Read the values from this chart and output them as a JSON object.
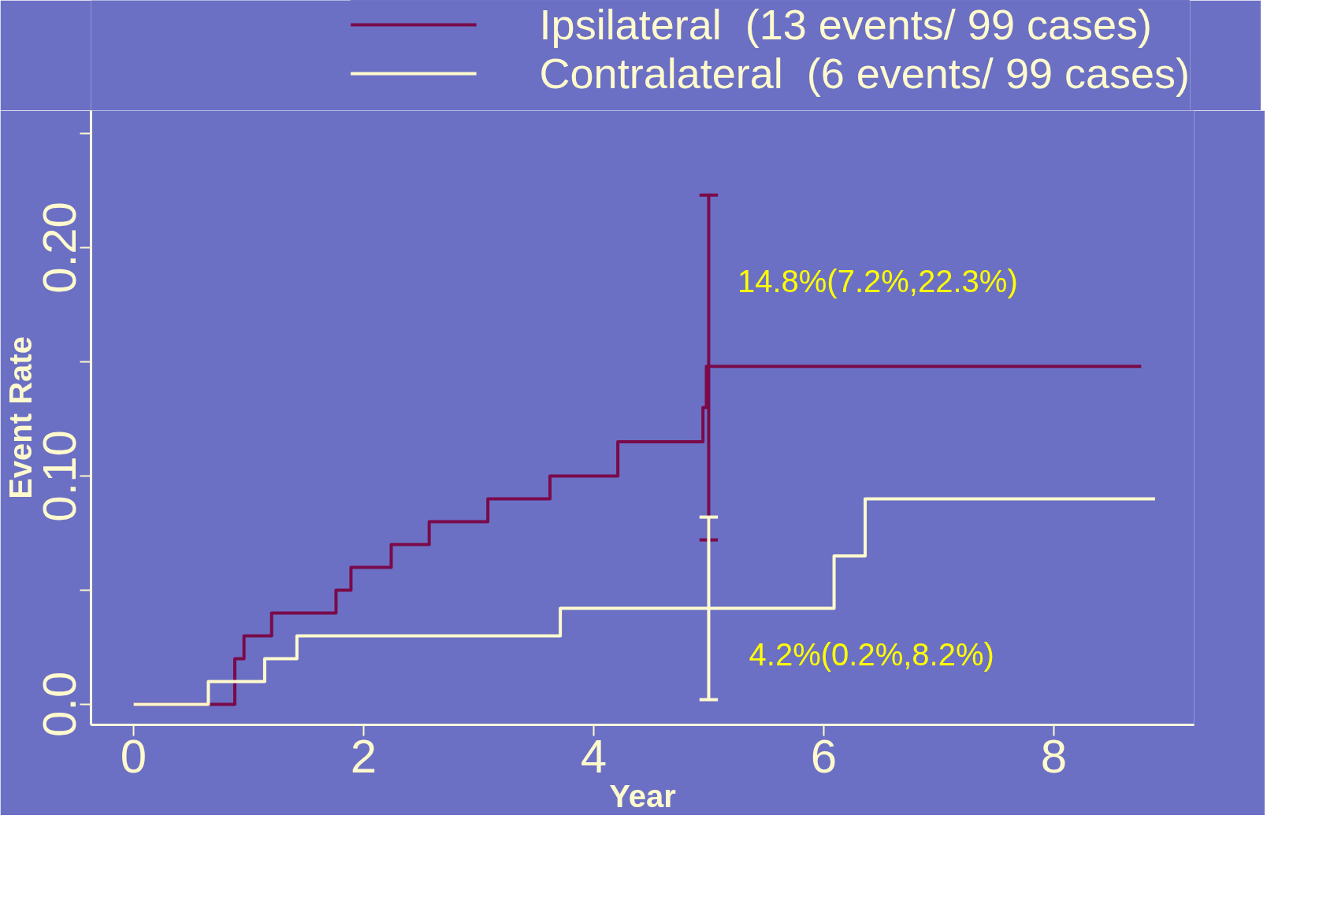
{
  "chart_data": {
    "type": "step",
    "xlabel": "Year",
    "ylabel": "Event Rate",
    "xlim": [
      -0.37,
      9.22
    ],
    "ylim": [
      -0.009,
      0.26
    ],
    "xticks": [
      0,
      2,
      4,
      6,
      8
    ],
    "yticks": [
      {
        "value": 0,
        "label": "0.0"
      },
      {
        "value": 0.05,
        "label": null
      },
      {
        "value": 0.1,
        "label": "0.10"
      },
      {
        "value": 0.15,
        "label": null
      },
      {
        "value": 0.2,
        "label": "0.20"
      },
      {
        "value": 0.25,
        "label": null
      }
    ],
    "grid": false,
    "legend": "top",
    "marker": "none",
    "line_style": "solid",
    "series": [
      {
        "name": "Ipsilateral  (13 events/ 99 cases)",
        "color": "#7a0a4a",
        "x": [
          0,
          0.88,
          0.96,
          1.2,
          1.76,
          1.89,
          2.24,
          2.57,
          3.08,
          3.62,
          4.21,
          4.95,
          4.98,
          5,
          8.76
        ],
        "values": [
          0,
          0.02,
          0.03,
          0.04,
          0.05,
          0.06,
          0.07,
          0.08,
          0.09,
          0.1,
          0.115,
          0.13,
          0.148,
          0.148,
          0.148
        ],
        "errors": [
          null,
          null,
          null,
          null,
          null,
          null,
          null,
          null,
          null,
          null,
          null,
          null,
          null,
          [
            0.072,
            0.223
          ],
          null
        ]
      },
      {
        "name": "Contralateral  (6 events/ 99 cases)",
        "color": "#fffacd",
        "x": [
          0,
          0.65,
          1.14,
          1.42,
          3.71,
          5,
          6.09,
          6.36,
          8.88
        ],
        "values": [
          0,
          0.01,
          0.02,
          0.03,
          0.042,
          0.042,
          0.065,
          0.09,
          0.09
        ],
        "errors": [
          null,
          null,
          null,
          null,
          null,
          [
            0.002,
            0.082
          ],
          null,
          null,
          null
        ]
      }
    ],
    "annotations": [
      "14.8%(7.2%,22.3%)",
      "4.2%(0.2%,8.2%)"
    ]
  }
}
